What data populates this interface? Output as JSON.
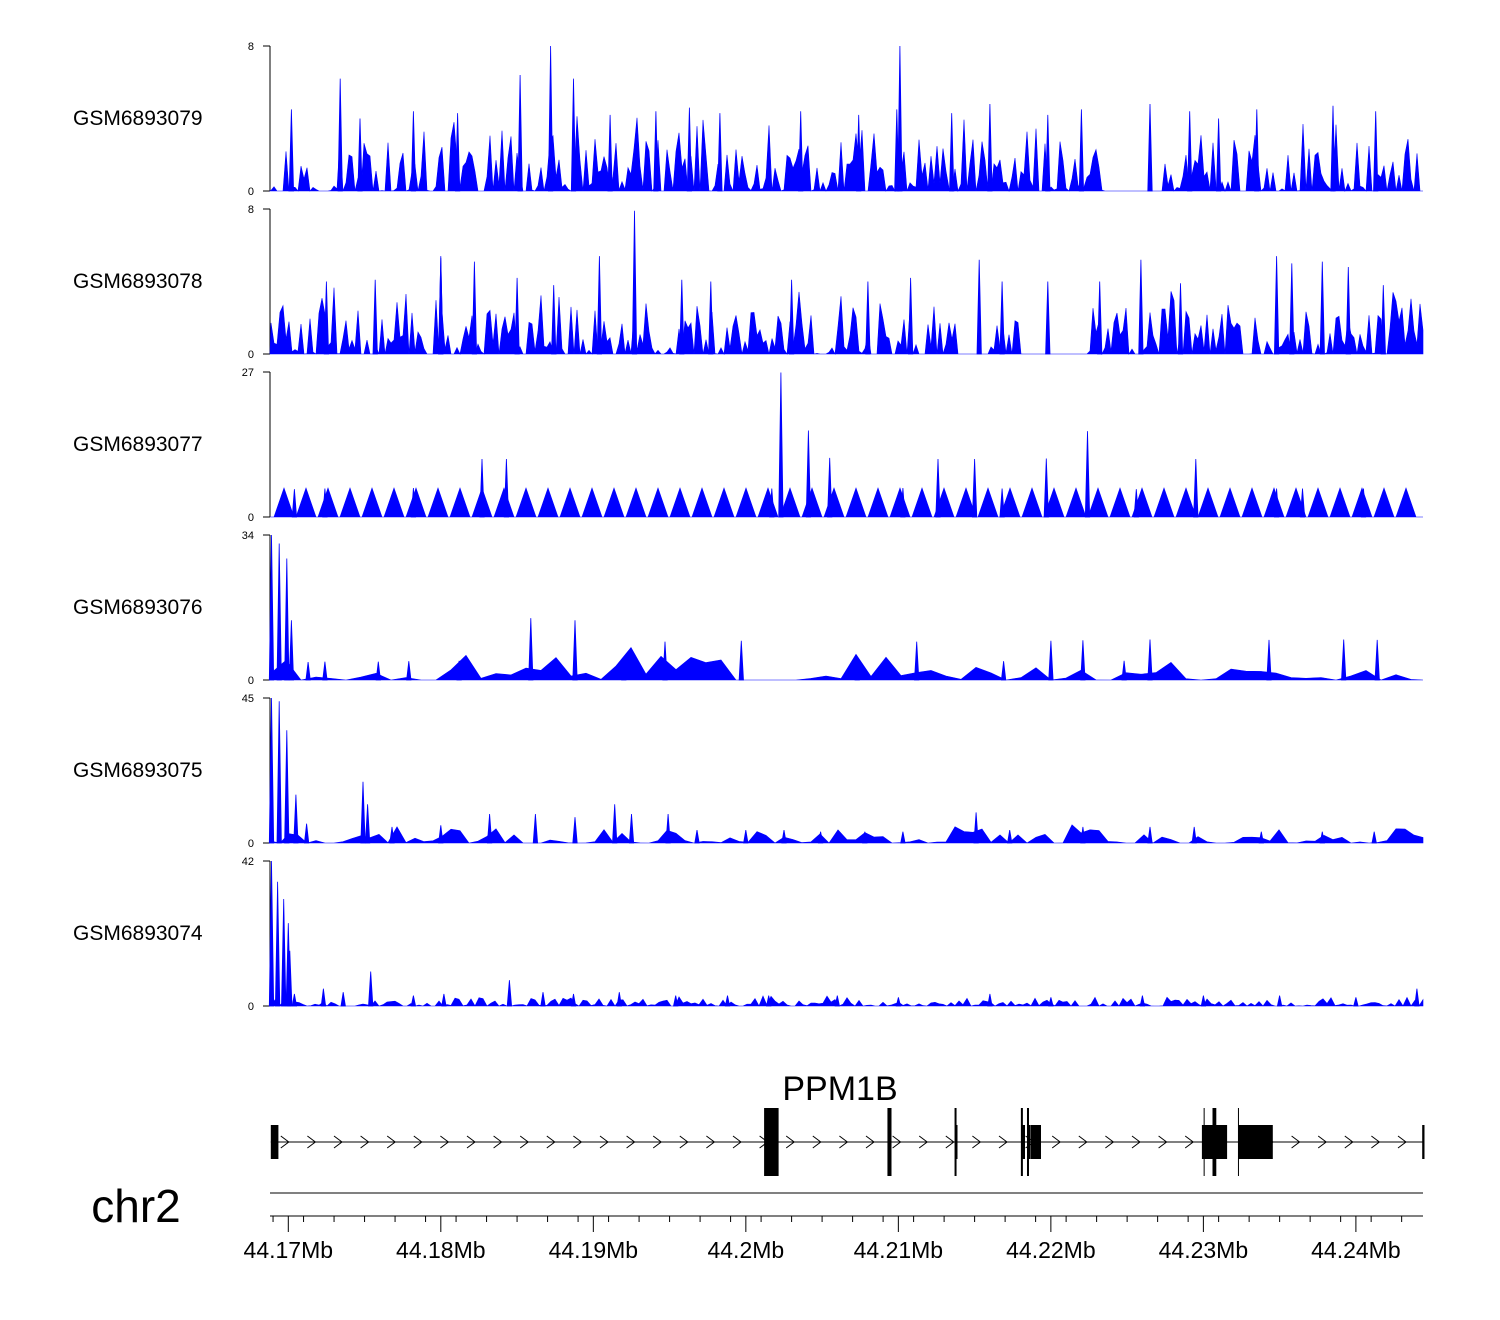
{
  "chart_data": {
    "type": "area",
    "title": "",
    "series_color": "#0000ff",
    "x_range_mb": [
      44.1688,
      44.2444
    ],
    "x_ticks": [
      44.17,
      44.18,
      44.19,
      44.2,
      44.21,
      44.22,
      44.23,
      44.24
    ],
    "x_tick_labels": [
      "44.17Mb",
      "44.18Mb",
      "44.19Mb",
      "44.2Mb",
      "44.21Mb",
      "44.22Mb",
      "44.23Mb",
      "44.24Mb"
    ],
    "chromosome": "chr2",
    "tracks": [
      {
        "name": "GSM6893079",
        "ymax": 8,
        "ymax_label": "8",
        "ymin_label": "0",
        "peaks": [
          [
            44.1702,
            4.5
          ],
          [
            44.1734,
            6.2
          ],
          [
            44.1747,
            4.0
          ],
          [
            44.1782,
            4.4
          ],
          [
            44.1811,
            4.3
          ],
          [
            44.1852,
            6.4
          ],
          [
            44.1872,
            8.0
          ],
          [
            44.1887,
            6.2
          ],
          [
            44.1911,
            4.2
          ],
          [
            44.1941,
            4.4
          ],
          [
            44.1963,
            4.6
          ],
          [
            44.1983,
            4.3
          ],
          [
            44.2036,
            4.4
          ],
          [
            44.2074,
            4.2
          ],
          [
            44.2099,
            4.5
          ],
          [
            44.2101,
            8.0
          ],
          [
            44.2135,
            4.3
          ],
          [
            44.216,
            4.8
          ],
          [
            44.2198,
            4.2
          ],
          [
            44.222,
            4.5
          ],
          [
            44.2265,
            4.8
          ],
          [
            44.2291,
            4.4
          ],
          [
            44.231,
            4.0
          ],
          [
            44.2335,
            4.5
          ],
          [
            44.2385,
            4.7
          ],
          [
            44.2413,
            4.4
          ]
        ],
        "gaps": [
          [
            44.2234,
            44.2272
          ]
        ]
      },
      {
        "name": "GSM6893078",
        "ymax": 8,
        "ymax_label": "8",
        "ymin_label": "0",
        "peaks": [
          [
            44.1725,
            4.0
          ],
          [
            44.1757,
            4.1
          ],
          [
            44.18,
            5.3
          ],
          [
            44.18,
            5.4
          ],
          [
            44.1822,
            5.1
          ],
          [
            44.185,
            4.2
          ],
          [
            44.1874,
            3.8
          ],
          [
            44.1904,
            5.4
          ],
          [
            44.1927,
            7.9
          ],
          [
            44.1958,
            4.1
          ],
          [
            44.1977,
            4.0
          ],
          [
            44.203,
            4.1
          ],
          [
            44.208,
            4.0
          ],
          [
            44.2108,
            4.2
          ],
          [
            44.2153,
            5.2
          ],
          [
            44.2168,
            4.0
          ],
          [
            44.2198,
            4.0
          ],
          [
            44.2232,
            4.0
          ],
          [
            44.2259,
            5.2
          ],
          [
            44.2285,
            3.9
          ],
          [
            44.2348,
            5.4
          ],
          [
            44.2358,
            5.0
          ],
          [
            44.2378,
            5.1
          ],
          [
            44.2395,
            4.8
          ],
          [
            44.2418,
            3.8
          ]
        ],
        "gaps": [
          [
            44.2138,
            44.216
          ],
          [
            44.2181,
            44.2224
          ]
        ]
      },
      {
        "name": "GSM6893077",
        "ymax": 27,
        "ymax_label": "27",
        "ymin_label": "0",
        "peaks": [
          [
            44.1704,
            5.2
          ],
          [
            44.1724,
            5.3
          ],
          [
            44.1782,
            5.4
          ],
          [
            44.1827,
            10.8
          ],
          [
            44.1843,
            10.8
          ],
          [
            44.2017,
            5.3
          ],
          [
            44.2023,
            26.9
          ],
          [
            44.2041,
            16.1
          ],
          [
            44.2055,
            11.0
          ],
          [
            44.2103,
            5.4
          ],
          [
            44.2126,
            10.8
          ],
          [
            44.215,
            10.8
          ],
          [
            44.2168,
            5.3
          ],
          [
            44.2197,
            10.9
          ],
          [
            44.2224,
            16.0
          ],
          [
            44.2256,
            5.2
          ],
          [
            44.2295,
            10.8
          ],
          [
            44.2348,
            5.3
          ],
          [
            44.2365,
            5.3
          ],
          [
            44.2405,
            5.3
          ]
        ],
        "gaps": [
          [
            44.1688,
            44.1696
          ]
        ]
      },
      {
        "name": "GSM6893076",
        "ymax": 34,
        "ymax_label": "34",
        "ymin_label": "0",
        "peaks": [
          [
            44.1689,
            34.0
          ],
          [
            44.1694,
            32.0
          ],
          [
            44.1699,
            28.5
          ],
          [
            44.1702,
            14.0
          ],
          [
            44.1713,
            4.2
          ],
          [
            44.1724,
            4.3
          ],
          [
            44.1759,
            4.3
          ],
          [
            44.1779,
            4.4
          ],
          [
            44.1812,
            4.5
          ],
          [
            44.1859,
            14.5
          ],
          [
            44.1888,
            14.0
          ],
          [
            44.192,
            4.4
          ],
          [
            44.1947,
            9.0
          ],
          [
            44.1997,
            9.2
          ],
          [
            44.2073,
            4.3
          ],
          [
            44.2112,
            9.0
          ],
          [
            44.2169,
            4.4
          ],
          [
            44.22,
            9.2
          ],
          [
            44.2221,
            9.3
          ],
          [
            44.2248,
            4.5
          ],
          [
            44.2265,
            9.5
          ],
          [
            44.2343,
            9.4
          ],
          [
            44.2392,
            9.5
          ],
          [
            44.2414,
            9.4
          ]
        ],
        "gaps": []
      },
      {
        "name": "GSM6893075",
        "ymax": 45,
        "ymax_label": "45",
        "ymin_label": "0",
        "peaks": [
          [
            44.1689,
            45.0
          ],
          [
            44.1694,
            44.0
          ],
          [
            44.1699,
            35.0
          ],
          [
            44.1705,
            15.0
          ],
          [
            44.1712,
            6.0
          ],
          [
            44.1749,
            19.0
          ],
          [
            44.1752,
            12.0
          ],
          [
            44.1768,
            5.0
          ],
          [
            44.18,
            5.5
          ],
          [
            44.1832,
            9.0
          ],
          [
            44.1862,
            9.0
          ],
          [
            44.1888,
            8.0
          ],
          [
            44.1914,
            12.0
          ],
          [
            44.1925,
            9.0
          ],
          [
            44.1949,
            9.0
          ],
          [
            44.1968,
            4.0
          ],
          [
            44.2,
            4.0
          ],
          [
            44.2025,
            4.0
          ],
          [
            44.2049,
            3.5
          ],
          [
            44.2078,
            3.5
          ],
          [
            44.2103,
            3.5
          ],
          [
            44.2151,
            9.5
          ],
          [
            44.2173,
            4.0
          ],
          [
            44.2221,
            5.0
          ],
          [
            44.2265,
            5.0
          ],
          [
            44.2294,
            5.0
          ],
          [
            44.2338,
            3.5
          ],
          [
            44.2378,
            3.5
          ],
          [
            44.2412,
            3.5
          ]
        ],
        "gaps": []
      },
      {
        "name": "GSM6893074",
        "ymax": 42,
        "ymax_label": "42",
        "ymin_label": "0",
        "peaks": [
          [
            44.1689,
            42.0
          ],
          [
            44.1693,
            36.0
          ],
          [
            44.1697,
            31.0
          ],
          [
            44.17,
            24.0
          ],
          [
            44.1701,
            16.0
          ],
          [
            44.1704,
            3.5
          ],
          [
            44.1723,
            5.0
          ],
          [
            44.1736,
            4.0
          ],
          [
            44.1754,
            10.0
          ],
          [
            44.1782,
            3.0
          ],
          [
            44.1802,
            3.5
          ],
          [
            44.1845,
            7.5
          ],
          [
            44.1867,
            4.0
          ],
          [
            44.1887,
            3.5
          ],
          [
            44.1917,
            4.0
          ],
          [
            44.1954,
            3.0
          ],
          [
            44.1988,
            3.0
          ],
          [
            44.2015,
            3.0
          ],
          [
            44.206,
            3.0
          ],
          [
            44.21,
            2.5
          ],
          [
            44.216,
            3.5
          ],
          [
            44.22,
            2.5
          ],
          [
            44.226,
            3.0
          ],
          [
            44.23,
            3.0
          ],
          [
            44.235,
            3.0
          ],
          [
            44.24,
            2.5
          ],
          [
            44.244,
            5.0
          ]
        ],
        "gaps": []
      }
    ],
    "gene": {
      "name": "PPM1B",
      "strand": "+",
      "start_mb": 44.16885,
      "end_mb": 44.24445,
      "exons": [
        [
          44.16885,
          44.16935,
          "thick"
        ],
        [
          44.2012,
          44.20215,
          "thick"
        ],
        [
          44.20935,
          44.20955,
          "thin"
        ],
        [
          44.21375,
          44.21385,
          "thin"
        ],
        [
          44.2181,
          44.2183,
          "thin"
        ],
        [
          44.2185,
          44.2186,
          "thin"
        ],
        [
          44.21865,
          44.21935,
          "thick"
        ],
        [
          44.2299,
          44.23155,
          "thick"
        ],
        [
          44.2306,
          44.23085,
          "tall"
        ],
        [
          44.2323,
          44.23455,
          "thick"
        ],
        [
          44.24435,
          44.2445,
          "thin"
        ]
      ],
      "thin_marks_mb": [
        44.23005,
        44.2323
      ]
    }
  }
}
